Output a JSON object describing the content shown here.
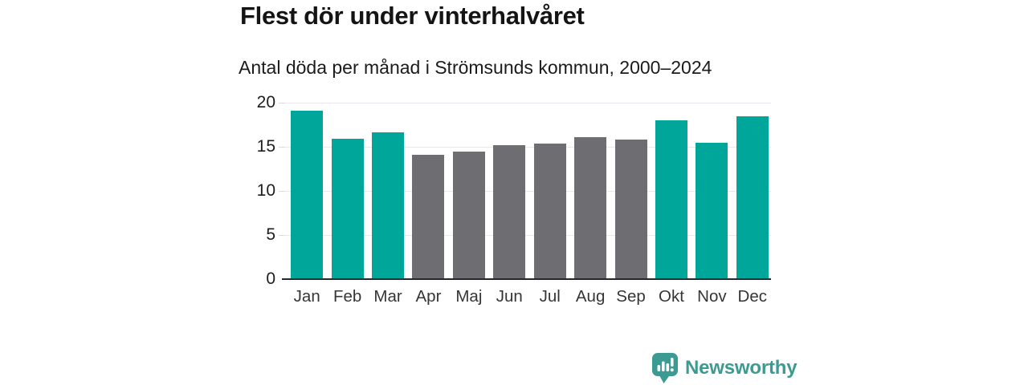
{
  "title": "Flest dör under vinterhalvåret",
  "subtitle": "Antal döda per månad i Strömsunds kommun, 2000–2024",
  "branding": {
    "logo_text": "Newsworthy",
    "logo_icon": "newsworthy-bar-chart-bubble-icon"
  },
  "colors": {
    "winter_bar": "#00a69a",
    "summer_bar": "#6d6d72",
    "grid": "#e8e8ee",
    "axis": "#26262a",
    "brand": "#3b9a92"
  },
  "chart_data": {
    "type": "bar",
    "title": "Flest dör under vinterhalvåret",
    "subtitle": "Antal döda per månad i Strömsunds kommun, 2000–2024",
    "categories": [
      "Jan",
      "Feb",
      "Mar",
      "Apr",
      "Maj",
      "Jun",
      "Jul",
      "Aug",
      "Sep",
      "Okt",
      "Nov",
      "Dec"
    ],
    "values": [
      19.1,
      15.9,
      16.6,
      14.1,
      14.5,
      15.2,
      15.4,
      16.1,
      15.8,
      18.0,
      15.5,
      18.5
    ],
    "bar_color_keys": [
      "winter_bar",
      "winter_bar",
      "winter_bar",
      "summer_bar",
      "summer_bar",
      "summer_bar",
      "summer_bar",
      "summer_bar",
      "summer_bar",
      "winter_bar",
      "winter_bar",
      "winter_bar"
    ],
    "xlabel": "",
    "ylabel": "",
    "ylim": [
      0,
      20
    ],
    "yticks": [
      0,
      5,
      10,
      15,
      20
    ],
    "grid": true,
    "legend": false
  }
}
